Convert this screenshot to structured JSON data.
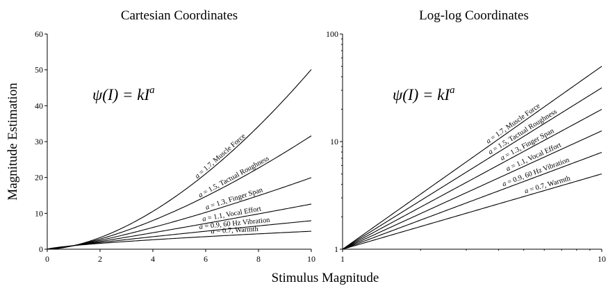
{
  "figure": {
    "xlabel": "Stimulus Magnitude",
    "ylabel": "Magnitude Estimation",
    "formula": {
      "psi": "ψ",
      "left": "(I) = kI",
      "exponent": "a"
    }
  },
  "chart_data": [
    {
      "type": "line",
      "title": "Cartesian Coordinates",
      "xscale": "linear",
      "yscale": "linear",
      "xlim": [
        0,
        10
      ],
      "ylim": [
        0,
        60
      ],
      "xticks": [
        0,
        2,
        4,
        6,
        8,
        10
      ],
      "yticks": [
        0,
        10,
        20,
        30,
        40,
        50,
        60
      ],
      "grid": false,
      "x": [
        0,
        0.5,
        1,
        1.5,
        2,
        2.5,
        3,
        3.5,
        4,
        4.5,
        5,
        5.5,
        6,
        6.5,
        7,
        7.5,
        8,
        8.5,
        9,
        9.5,
        10
      ],
      "series": [
        {
          "name": "a = 1.7, Muscle Force",
          "exponent": 1.7,
          "label_text": "= 1.7, Muscle Force",
          "label_at_x": 6.6
        },
        {
          "name": "a = 1.5, Tactual Roughness",
          "exponent": 1.5,
          "label_text": "= 1.5, Tactual Roughness",
          "label_at_x": 7.1
        },
        {
          "name": "a = 1.3, Finger Span",
          "exponent": 1.3,
          "label_text": "= 1.3, Finger Span",
          "label_at_x": 7.1
        },
        {
          "name": "a = 1.1, Vocal Effort",
          "exponent": 1.1,
          "label_text": "= 1.1, Vocal Effort",
          "label_at_x": 7.0
        },
        {
          "name": "a = 0.9, 60 Hz Vibration",
          "exponent": 0.9,
          "label_text": "= 0.9, 60 Hz Vibration",
          "label_at_x": 7.1
        },
        {
          "name": "a = 0.7, Warmth",
          "exponent": 0.7,
          "label_text": "= 0.7, Warmth",
          "label_at_x": 7.1
        }
      ]
    },
    {
      "type": "line",
      "title": "Log-log Coordinates",
      "xscale": "log",
      "yscale": "log",
      "xlim": [
        1,
        10
      ],
      "ylim": [
        1,
        100
      ],
      "xticks": [
        1,
        10
      ],
      "yticks": [
        1,
        10,
        100
      ],
      "grid": false,
      "x": [
        1,
        2,
        3,
        4,
        5,
        6,
        7,
        8,
        9,
        10
      ],
      "series": [
        {
          "name": "a = 1.7, Muscle Force",
          "exponent": 1.7,
          "label_text": "= 1.7, Muscle Force",
          "label_at_x": 4.6
        },
        {
          "name": "a = 1.5, Tactual Roughness",
          "exponent": 1.5,
          "label_text": "= 1.5, Tactual Roughness",
          "label_at_x": 5.0
        },
        {
          "name": "a = 1.3, Finger Span",
          "exponent": 1.3,
          "label_text": "= 1.3, Finger Span",
          "label_at_x": 5.2
        },
        {
          "name": "a = 1.1, Vocal Effort",
          "exponent": 1.1,
          "label_text": "= 1.1, Vocal Effort",
          "label_at_x": 5.5
        },
        {
          "name": "a = 0.9, 60 Hz Vibration",
          "exponent": 0.9,
          "label_text": "= 0.9, 60 Hz Vibration",
          "label_at_x": 5.6
        },
        {
          "name": "a = 0.7, Warmth",
          "exponent": 0.7,
          "label_text": "= 0.7, Warmth",
          "label_at_x": 6.2
        }
      ]
    }
  ]
}
